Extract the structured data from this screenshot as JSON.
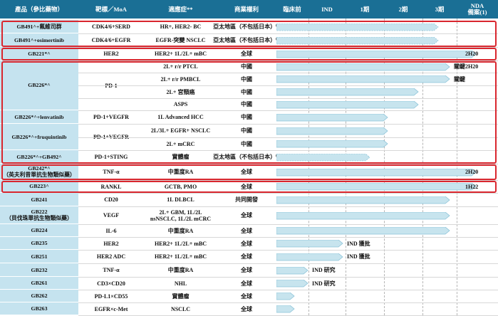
{
  "headers": {
    "product": "產品（參比藥物）",
    "target": "靶標／MoA",
    "indication": "適應症**",
    "rights": "商業權利",
    "preclinical": "臨床前",
    "ind": "IND",
    "phase1": "1期",
    "phase2": "2期",
    "phase3": "3期",
    "nda_line1": "NDA",
    "nda_line2": "備案(1)"
  },
  "colors": {
    "header_bg": "#1a6f95",
    "product_bg": "#c5e3ef",
    "bar_fill": "#c7e4ee",
    "bar_edge": "#8cc3d8",
    "highlight": "#d9262e"
  },
  "phases": [
    "preclinical",
    "ind",
    "phase1",
    "phase2",
    "phase3",
    "nda"
  ],
  "rows": [
    {
      "indication": "HR+, HER2- BC",
      "rights": "亞太地區（不包括日本）",
      "sup": "(2)",
      "progress": 0.73,
      "dashed": true
    },
    {
      "indication": "EGFR-突變 NSCLC",
      "rights": "亞太地區（不包括日本）",
      "sup": "(2)",
      "progress": 0.73,
      "dashed": true
    },
    {
      "indication": "HER2+ 1L/2L+ mBC",
      "rights": "全球",
      "progress": 0.9,
      "nda": "2H20"
    },
    {
      "indication": "2L+ r/r PTCL",
      "rights": "中國",
      "progress": 0.78,
      "status": "關鍵",
      "nda": "2H20"
    },
    {
      "indication": "2L+ r/r PMBCL",
      "rights": "中國",
      "progress": 0.78,
      "status": "關鍵"
    },
    {
      "indication": "2L+ 宮頸癌",
      "rights": "中國",
      "progress": 0.64
    },
    {
      "indication": "ASPS",
      "rights": "中國",
      "progress": 0.64
    },
    {
      "indication": "1L Advanced HCC",
      "rights": "中國",
      "progress": 0.5
    },
    {
      "indication": "2L/3L+ EGFR+ NSCLC",
      "rights": "中國",
      "progress": 0.5
    },
    {
      "indication": "2L+ mCRC",
      "rights": "中國",
      "progress": 0.5
    },
    {
      "indication": "實體瘤",
      "rights": "亞太地區（不包括日本）",
      "sup": "(3)",
      "progress": 0.42,
      "dashed": true
    },
    {
      "indication": "中重度RA",
      "rights": "全球",
      "progress": 0.9,
      "nda": "2H20"
    },
    {
      "indication": "GCTB, PMO",
      "rights": "全球",
      "progress": 0.9,
      "nda": "1H22"
    },
    {
      "indication": "1L DLBCL",
      "rights": "共同開發",
      "progress": 0.78
    },
    {
      "indication_line1": "2L+ GBM, 1L/2L",
      "indication_line2": "nsNSCLC, 1L/2L mCRC",
      "rights": "全球",
      "progress": 0.78
    },
    {
      "indication": "中重度RA",
      "rights": "全球",
      "progress": 0.78
    },
    {
      "indication": "HER2+ 1L/2L+ mBC",
      "rights": "全球",
      "progress": 0.3,
      "status": "IND 獲批"
    },
    {
      "indication": "HER2+ 1L/2L+ mBC",
      "rights": "全球",
      "progress": 0.3,
      "status": "IND 獲批"
    },
    {
      "indication": "中重度RA",
      "rights": "全球",
      "progress": 0.14,
      "status": "IND 研究"
    },
    {
      "indication": "NHL",
      "rights": "全球",
      "progress": 0.14,
      "status": "IND 研究"
    },
    {
      "indication": "實體瘤",
      "rights": "全球",
      "progress": 0.08
    },
    {
      "indication": "NSCLC",
      "rights": "全球",
      "progress": 0.08
    }
  ],
  "products": [
    {
      "name": "GB491^+氟維司群"
    },
    {
      "name": "GB491^+osimertinib"
    },
    {
      "name": "GB221*^"
    },
    {
      "name": "GB226*^"
    },
    {
      "name": "GB226*^+lenvatinib"
    },
    {
      "name": "GB226*^+fruquintinib"
    },
    {
      "name": "GB226*^+GB492^"
    },
    {
      "name_line1": "GB242*^",
      "name_line2": "（英夫利昔單抗生物類似藥）"
    },
    {
      "name": "GB223^"
    },
    {
      "name": "GB241"
    },
    {
      "name_line1": "GB222",
      "name_line2": "（貝伐珠單抗生物類似藥）"
    },
    {
      "name": "GB224"
    },
    {
      "name": "GB235"
    },
    {
      "name": "GB251"
    },
    {
      "name": "GB232"
    },
    {
      "name": "GB261"
    },
    {
      "name": "GB262"
    },
    {
      "name": "GB263"
    }
  ],
  "targets": [
    {
      "label": "CDK4/6+SERD"
    },
    {
      "label": "CDK4/6+EGFR"
    },
    {
      "label": "HER2"
    },
    {
      "label": "PD-1"
    },
    {
      "label": "PD-1+VEGFR"
    },
    {
      "label": "PD-1+VEGFR"
    },
    {
      "label": "PD-1+STING"
    },
    {
      "label": "TNF-α"
    },
    {
      "label": "RANKL"
    },
    {
      "label": "CD20"
    },
    {
      "label": "VEGF"
    },
    {
      "label": "IL-6"
    },
    {
      "label": "HER2"
    },
    {
      "label": "HER2 ADC"
    },
    {
      "label": "TNF-α"
    },
    {
      "label": "CD3×CD20"
    },
    {
      "label": "PD-L1×CD55"
    },
    {
      "label": "EGFR×c-Met"
    }
  ]
}
